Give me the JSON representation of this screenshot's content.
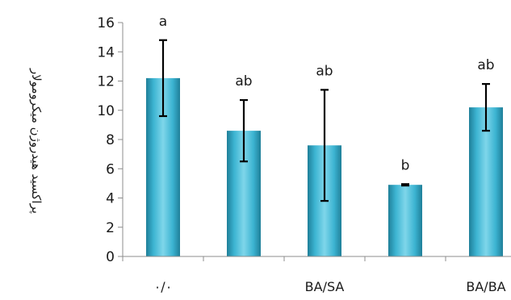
{
  "chart_data": {
    "type": "bar",
    "ylabel": "پراکسید هیدروژن میکرومولار",
    "ylim": [
      0,
      16
    ],
    "yticks": [
      0,
      2,
      4,
      6,
      8,
      10,
      12,
      14,
      16
    ],
    "grid": false,
    "categories": [
      "۰/۰",
      "",
      "BA/SA",
      "",
      "BA/BA"
    ],
    "values": [
      12.2,
      8.6,
      7.6,
      4.9,
      10.2
    ],
    "error": [
      2.6,
      2.1,
      3.8,
      0.05,
      1.6
    ],
    "annotations": [
      "a",
      "ab",
      "ab",
      "b",
      "ab"
    ],
    "colors": {
      "bar_light": "#7fd6ea",
      "bar_mid": "#3cb4d2",
      "bar_dark": "#1f7f99"
    }
  }
}
